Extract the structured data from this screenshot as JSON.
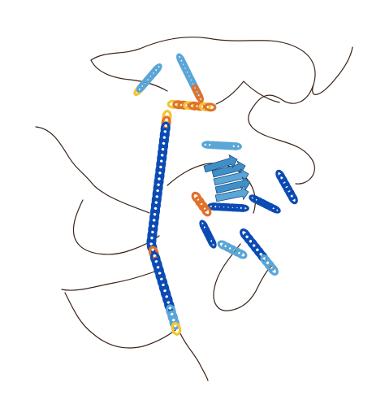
{
  "image": {
    "background": "#ffffff",
    "subject": "protein-structure-cartoon"
  },
  "colors": {
    "very_high": "#0b4bb3",
    "high": "#5aa6d6",
    "low": "#f2c531",
    "very_low": "#e0722c",
    "coil": "#3a2418"
  }
}
